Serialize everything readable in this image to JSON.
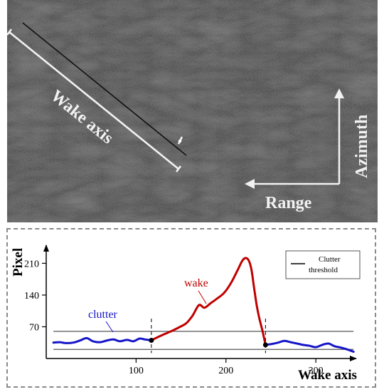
{
  "sar_image": {
    "wake_axis_label": "Wake axis",
    "azimuth_label": "Azimuth",
    "range_label": "Range",
    "colors": {
      "background": "#4a4a4a",
      "annotation": "#f2f2f2",
      "wake_line": "#111111"
    }
  },
  "profile_plot": {
    "legend": {
      "entry_label": "Clutter",
      "entry_label_2": "threshold"
    },
    "annotations": {
      "wake": "wake",
      "clutter": "clutter"
    },
    "colors": {
      "wake": "#c00000",
      "clutter": "#1515c8",
      "threshold": "#555555",
      "axis": "#000000"
    }
  },
  "chart_data": {
    "type": "line",
    "xlabel": "Wake axis",
    "ylabel": "Pixel",
    "xlim": [
      0,
      345
    ],
    "ylim": [
      0,
      250
    ],
    "x_ticks": [
      100,
      200,
      300
    ],
    "y_ticks": [
      70,
      140,
      210
    ],
    "threshold_lines": [
      60,
      20
    ],
    "wake_start_x": 117,
    "wake_end_x": 244,
    "series": [
      {
        "name": "clutter",
        "x": [
          8,
          15,
          22,
          30,
          38,
          45,
          52,
          60,
          68,
          75,
          82,
          90,
          97,
          104,
          110,
          117
        ],
        "y": [
          35,
          36,
          34,
          35,
          40,
          45,
          38,
          36,
          40,
          42,
          38,
          41,
          38,
          44,
          42,
          40
        ]
      },
      {
        "name": "wake",
        "x": [
          117,
          125,
          133,
          141,
          149,
          156,
          163,
          170,
          176,
          183,
          190,
          198,
          206,
          213,
          219,
          224,
          228,
          231,
          234,
          237,
          241,
          244
        ],
        "y": [
          40,
          48,
          55,
          62,
          70,
          78,
          95,
          118,
          112,
          122,
          132,
          145,
          168,
          195,
          218,
          220,
          200,
          160,
          120,
          90,
          58,
          30
        ]
      },
      {
        "name": "clutter",
        "x": [
          244,
          251,
          258,
          265,
          272,
          279,
          286,
          293,
          300,
          307,
          314,
          321,
          328,
          335,
          342
        ],
        "y": [
          30,
          32,
          35,
          39,
          36,
          33,
          30,
          28,
          25,
          30,
          33,
          27,
          24,
          20,
          15
        ]
      }
    ]
  }
}
